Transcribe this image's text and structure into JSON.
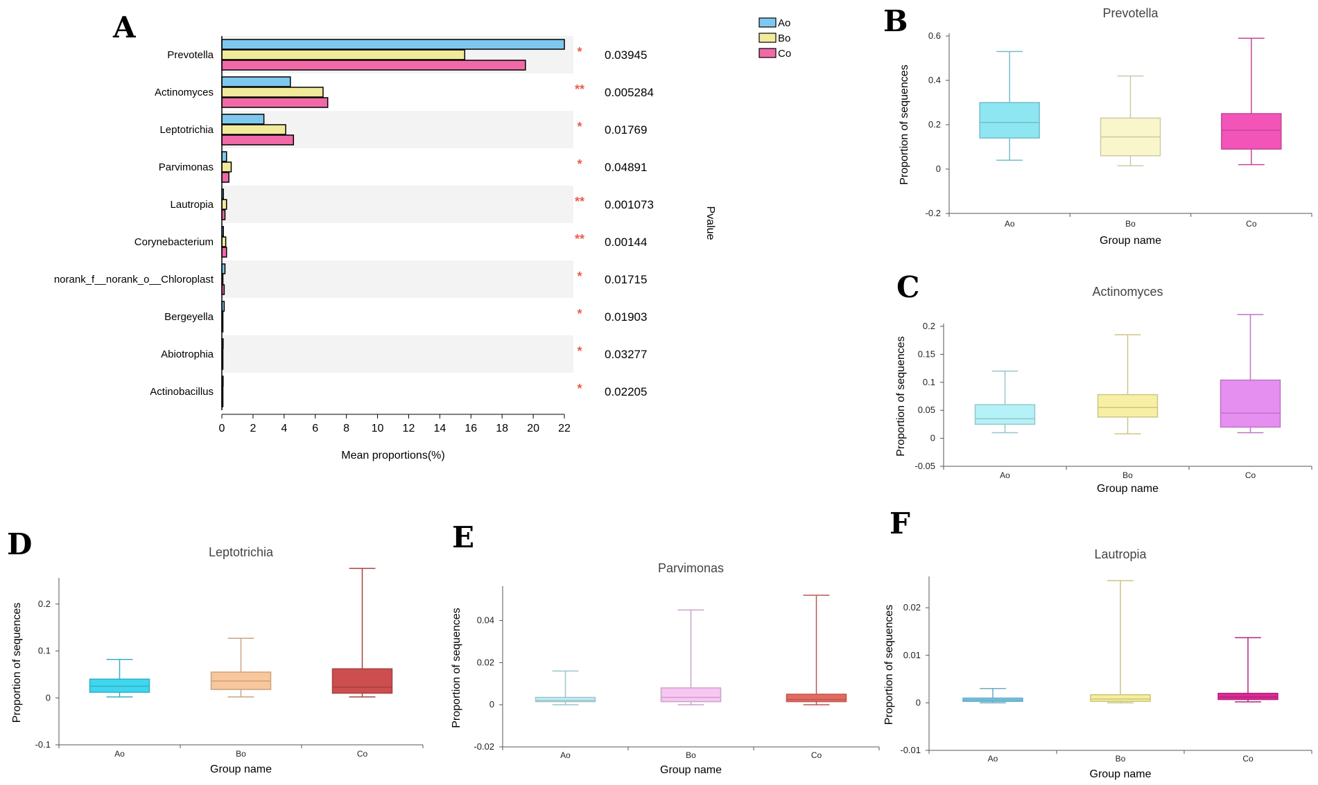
{
  "chart_data": [
    {
      "panel": "A",
      "type": "bar",
      "orientation": "horizontal",
      "xlabel": "Mean proportions(%)",
      "right_label": "Pvalue",
      "xlim": [
        0,
        22
      ],
      "xticks": [
        0,
        2,
        4,
        6,
        8,
        10,
        12,
        14,
        16,
        18,
        20,
        22
      ],
      "legend": {
        "placement": "top-right"
      },
      "categories": [
        "Prevotella",
        "Actinomyces",
        "Leptotrichia",
        "Parvimonas",
        "Lautropia",
        "Corynebacterium",
        "norank_f__norank_o__Chloroplast",
        "Bergeyella",
        "Abiotrophia",
        "Actinobacillus"
      ],
      "series": [
        {
          "name": "Ao",
          "color": "#7ec8ef",
          "values": [
            22.0,
            4.4,
            2.7,
            0.3,
            0.1,
            0.1,
            0.2,
            0.15,
            0.08,
            0.08
          ]
        },
        {
          "name": "Bo",
          "color": "#f1ea9b",
          "values": [
            15.6,
            6.5,
            4.1,
            0.6,
            0.3,
            0.25,
            0.05,
            0.05,
            0.05,
            0.05
          ]
        },
        {
          "name": "Co",
          "color": "#f06aa8",
          "values": [
            19.5,
            6.8,
            4.6,
            0.45,
            0.2,
            0.3,
            0.15,
            0.05,
            0.05,
            0.05
          ]
        }
      ],
      "significance": [
        "*",
        "**",
        "*",
        "*",
        "**",
        "**",
        "*",
        "*",
        "*",
        "*"
      ],
      "pvalues": [
        "0.03945",
        "0.005284",
        "0.01769",
        "0.04891",
        "0.001073",
        "0.00144",
        "0.01715",
        "0.01903",
        "0.03277",
        "0.02205"
      ]
    },
    {
      "panel": "B",
      "type": "box",
      "title": "Prevotella",
      "xlabel": "Group name",
      "ylabel": "Proportion of sequences",
      "ylim": [
        -0.2,
        0.6
      ],
      "yticks": [
        "-0.2",
        "0",
        "0.2",
        "0.4",
        "0.6"
      ],
      "groups": [
        {
          "name": "Ao",
          "color": "#8ee6f2",
          "min": 0.04,
          "q1": 0.14,
          "median": 0.21,
          "q3": 0.3,
          "max": 0.53
        },
        {
          "name": "Bo",
          "color": "#f9f6cc",
          "min": 0.015,
          "q1": 0.06,
          "median": 0.145,
          "q3": 0.23,
          "max": 0.42
        },
        {
          "name": "Co",
          "color": "#f254b8",
          "min": 0.02,
          "q1": 0.09,
          "median": 0.175,
          "q3": 0.25,
          "max": 0.59
        }
      ]
    },
    {
      "panel": "C",
      "type": "box",
      "title": "Actinomyces",
      "xlabel": "Group name",
      "ylabel": "Proportion of sequences",
      "ylim": [
        -0.05,
        0.2
      ],
      "yticks": [
        "-0.05",
        "0",
        "0.05",
        "0.1",
        "0.15",
        "0.2"
      ],
      "groups": [
        {
          "name": "Ao",
          "color": "#b5f2f7",
          "min": 0.01,
          "q1": 0.025,
          "median": 0.035,
          "q3": 0.06,
          "max": 0.12
        },
        {
          "name": "Bo",
          "color": "#f7f0a4",
          "min": 0.008,
          "q1": 0.038,
          "median": 0.055,
          "q3": 0.078,
          "max": 0.185
        },
        {
          "name": "Co",
          "color": "#e58ff0",
          "min": 0.01,
          "q1": 0.02,
          "median": 0.045,
          "q3": 0.104,
          "max": 0.221
        }
      ]
    },
    {
      "panel": "D",
      "type": "box",
      "title": "Leptotrichia",
      "xlabel": "Group name",
      "ylabel": "Proportion of sequences",
      "ylim": [
        -0.1,
        0.25
      ],
      "yticks": [
        "-0.1",
        "0",
        "0.1",
        "0.2"
      ],
      "groups": [
        {
          "name": "Ao",
          "color": "#3fd6ef",
          "min": 0.002,
          "q1": 0.012,
          "median": 0.025,
          "q3": 0.04,
          "max": 0.082
        },
        {
          "name": "Bo",
          "color": "#f8c79c",
          "min": 0.002,
          "q1": 0.018,
          "median": 0.036,
          "q3": 0.055,
          "max": 0.127
        },
        {
          "name": "Co",
          "color": "#cc4e4e",
          "min": 0.002,
          "q1": 0.01,
          "median": 0.023,
          "q3": 0.062,
          "max": 0.276
        }
      ]
    },
    {
      "panel": "E",
      "type": "box",
      "title": "Parvimonas",
      "xlabel": "Group name",
      "ylabel": "Proportion of sequences",
      "ylim": [
        -0.02,
        0.055
      ],
      "yticks": [
        "-0.02",
        "0",
        "0.02",
        "0.04"
      ],
      "groups": [
        {
          "name": "Ao",
          "color": "#bfeff6",
          "min": 0.0,
          "q1": 0.0015,
          "median": 0.002,
          "q3": 0.0035,
          "max": 0.016
        },
        {
          "name": "Bo",
          "color": "#f7c6f2",
          "min": 0.0,
          "q1": 0.0015,
          "median": 0.0035,
          "q3": 0.008,
          "max": 0.045
        },
        {
          "name": "Co",
          "color": "#e56a60",
          "min": 0.0,
          "q1": 0.0015,
          "median": 0.0025,
          "q3": 0.005,
          "max": 0.052
        }
      ]
    },
    {
      "panel": "F",
      "type": "box",
      "title": "Lautropia",
      "xlabel": "Group name",
      "ylabel": "Proportion of sequences",
      "ylim": [
        -0.01,
        0.026
      ],
      "yticks": [
        "-0.01",
        "0",
        "0.01",
        "0.02"
      ],
      "groups": [
        {
          "name": "Ao",
          "color": "#7fd0ef",
          "min": 0.0,
          "q1": 0.0003,
          "median": 0.0006,
          "q3": 0.001,
          "max": 0.003
        },
        {
          "name": "Bo",
          "color": "#f6ef9c",
          "min": 0.0,
          "q1": 0.0003,
          "median": 0.0008,
          "q3": 0.0017,
          "max": 0.0257
        },
        {
          "name": "Co",
          "color": "#dc2a96",
          "min": 0.0002,
          "q1": 0.0007,
          "median": 0.0012,
          "q3": 0.002,
          "max": 0.0137
        }
      ]
    }
  ]
}
